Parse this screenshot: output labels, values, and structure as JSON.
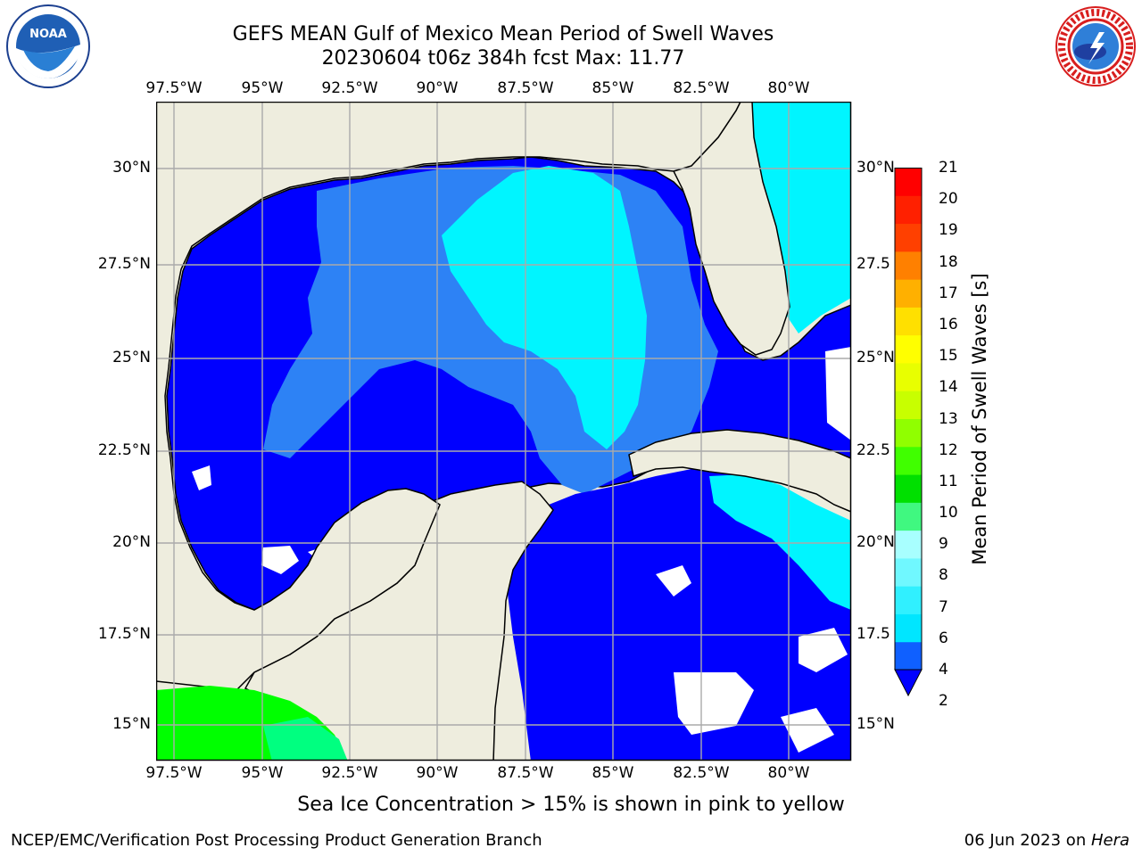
{
  "header": {
    "title_line1": "GEFS MEAN Gulf of Mexico Mean Period of Swell Waves",
    "title_line2": "20230604 t06z 384h fcst   Max: 11.77"
  },
  "logos": {
    "noaa_text": "NOAA",
    "noaa_ring": "NATIONAL OCEANIC AND ATMOSPHERIC ADMINISTRATION · U.S. DEPARTMENT OF COMMERCE",
    "nws_ring": "NATIONAL WEATHER SERVICE"
  },
  "map": {
    "lon_labels": [
      "97.5°W",
      "95°W",
      "92.5°W",
      "90°W",
      "87.5°W",
      "85°W",
      "82.5°W",
      "80°W"
    ],
    "lat_labels_left": [
      "30°N",
      "27.5°N",
      "25°N",
      "22.5°N",
      "20°N",
      "17.5°N",
      "15°N"
    ],
    "lat_labels_right": [
      "30°N",
      "27.5",
      "25°N",
      "22.5",
      "20°N",
      "17.5",
      "15°N"
    ],
    "colors": {
      "land": "#eeedde",
      "period_2_4": "#0000ff",
      "period_4_6": "#2d82f5",
      "period_6_8": "#00f5ff",
      "period_8_10": "#00ff80",
      "period_10_12": "#00ff00",
      "no_data": "#ffffff",
      "grid": "#aaaaaa"
    }
  },
  "colorbar": {
    "label": "Mean Period of Swell Waves [s]",
    "ticks": [
      "21",
      "20",
      "19",
      "18",
      "17",
      "16",
      "15",
      "14",
      "13",
      "12",
      "11",
      "10",
      "9",
      "8",
      "7",
      "6",
      "4",
      "2"
    ],
    "colors_bottom_to_top": [
      "#0f60ff",
      "#00e6ff",
      "#30f0ff",
      "#70f8ff",
      "#a8ffff",
      "#40f880",
      "#00e000",
      "#40ff00",
      "#90ff00",
      "#c8ff00",
      "#e8ff00",
      "#ffff00",
      "#ffe000",
      "#ffb000",
      "#ff8000",
      "#ff4000",
      "#ff2000",
      "#ff0000"
    ],
    "under_color": "#0000ff"
  },
  "footer": {
    "note": "Sea Ice Concentration > 15% is shown in pink to yellow",
    "left": "NCEP/EMC/Verification Post Processing Product Generation Branch",
    "right_prefix": "06 Jun 2023 on ",
    "right_host": "Hera"
  }
}
